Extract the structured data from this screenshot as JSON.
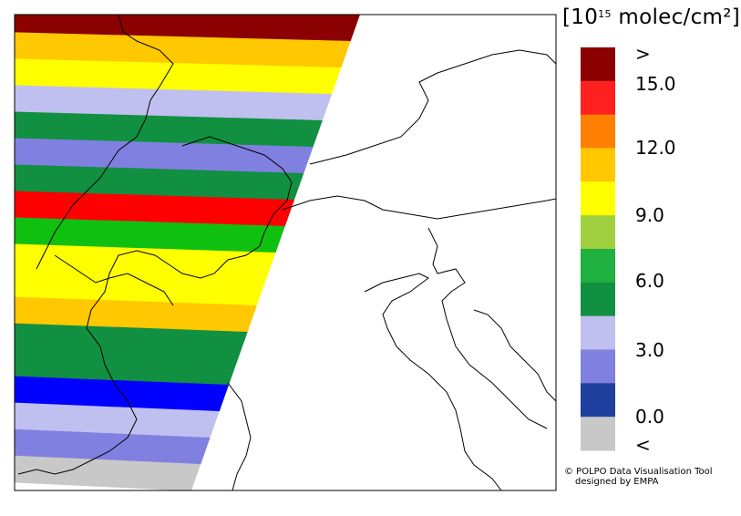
{
  "legend": {
    "unit_prefix": "[10",
    "unit_exponent": "15",
    "unit_suffix": " molec/cm²]",
    "ticks": [
      ">",
      "15.0",
      "12.0",
      "9.0",
      "6.0",
      "3.0",
      "0.0",
      "<"
    ],
    "colors": [
      "#8b0000",
      "#ff2020",
      "#ff8000",
      "#ffc800",
      "#ffff00",
      "#a0d040",
      "#20b040",
      "#109040",
      "#c0c0f0",
      "#8080e0",
      "#2040a0",
      "#c8c8c8"
    ]
  },
  "credit": {
    "line1": "© POLPO Data Visualisation Tool",
    "line2": "designed by EMPA"
  },
  "swaths": [
    {
      "color": "#8b0000"
    },
    {
      "color": "#ffc800"
    },
    {
      "color": "#ffff00"
    },
    {
      "color": "#c0c0f0"
    },
    {
      "color": "#109040"
    },
    {
      "color": "#8080e0"
    },
    {
      "color": "#109040"
    },
    {
      "color": "#ff0000"
    },
    {
      "color": "#10c010"
    },
    {
      "color": "#ffff00"
    },
    {
      "color": "#ffff00"
    },
    {
      "color": "#ffc800"
    },
    {
      "color": "#109040"
    },
    {
      "color": "#109040"
    },
    {
      "color": "#0000ff"
    },
    {
      "color": "#c0c0f0"
    },
    {
      "color": "#8080e0"
    },
    {
      "color": "#c8c8c8"
    }
  ]
}
